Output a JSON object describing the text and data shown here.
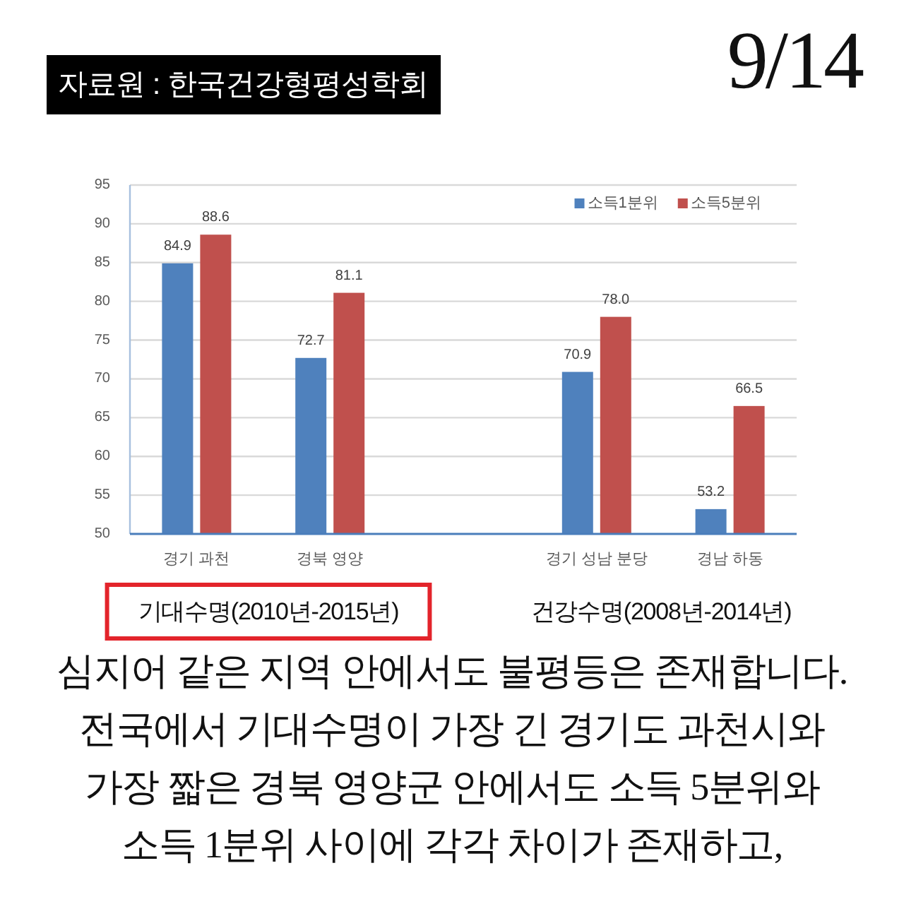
{
  "chart_data": {
    "type": "bar",
    "categories": [
      "경기 과천",
      "경북 영양",
      null,
      "경기 성남 분당",
      "경남 하동"
    ],
    "series": [
      {
        "name": "소득1분위",
        "color": "#4f81bd",
        "values": [
          84.9,
          72.7,
          null,
          70.9,
          53.2
        ],
        "value_labels": [
          "84.9",
          "72.7",
          null,
          "70.9",
          "53.2"
        ]
      },
      {
        "name": "소득5분위",
        "color": "#c0504d",
        "values": [
          88.6,
          81.1,
          null,
          78.0,
          66.5
        ],
        "value_labels": [
          "88.6",
          "81.1",
          null,
          "78.0",
          "66.5"
        ]
      }
    ],
    "ylim": [
      50,
      95
    ],
    "yticks": [
      50,
      55,
      60,
      65,
      70,
      75,
      80,
      85,
      90,
      95
    ],
    "grid": "y",
    "legend": "top right",
    "annotations": [
      "자료원 : 한국건강형평성학회",
      "9/14",
      "기대수명(2010년-2015년)",
      "건강수명(2008년-2014년)",
      "심지어 같은 지역 안에서도 불평등은 존재합니다.",
      "전국에서 기대수명이 가장 긴 경기도 과천시와",
      "가장 짧은 경북 영양군 안에서도 소득 5분위와",
      "소득 1분위 사이에 각각 차이가 존재하고,"
    ]
  }
}
